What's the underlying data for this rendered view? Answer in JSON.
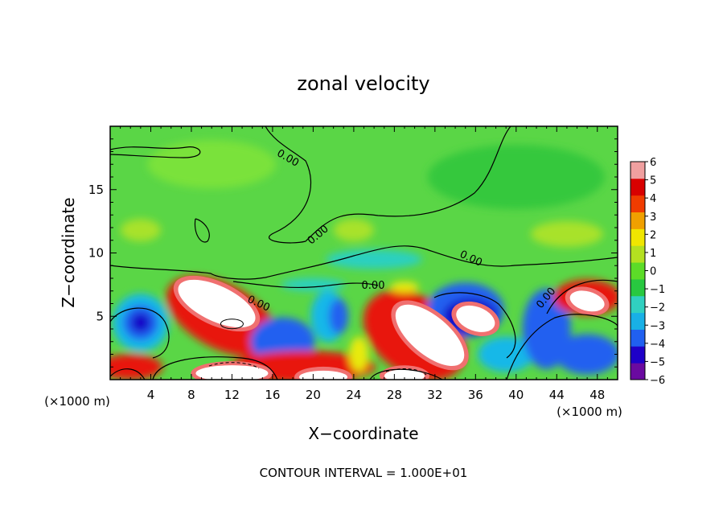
{
  "chart_data": {
    "type": "heatmap",
    "title": "zonal velocity",
    "xlabel": "X−coordinate",
    "ylabel": "Z−coordinate",
    "x_unit_left": "(×1000 m)",
    "x_unit_right": "(×1000 m)",
    "xlim": [
      0,
      50
    ],
    "ylim": [
      0,
      20
    ],
    "x_ticks": [
      4,
      8,
      12,
      16,
      20,
      24,
      28,
      32,
      36,
      40,
      44,
      48
    ],
    "y_ticks": [
      5,
      10,
      15
    ],
    "colorbar": {
      "min": -6,
      "max": 6,
      "tick_values": [
        6,
        5,
        4,
        3,
        2,
        1,
        0,
        -1,
        -2,
        -3,
        -4,
        -5,
        -6
      ],
      "tick_labels": [
        "6",
        "5",
        "4",
        "3",
        "2",
        "1",
        "0",
        "−1",
        "−2",
        "−3",
        "−4",
        "−5",
        "−6"
      ],
      "colors": [
        "#6a0aa0",
        "#1e00c8",
        "#2060f0",
        "#18b0e6",
        "#30d0c0",
        "#28c840",
        "#5cdc28",
        "#b4e020",
        "#f0e600",
        "#f0a000",
        "#f03c00",
        "#d80000",
        "#f0a0a0"
      ]
    },
    "contour_labels": [
      "0.00",
      "0.00",
      "0.00",
      "0.00",
      "0.00",
      "0.00",
      "0.00"
    ],
    "footer": "CONTOUR INTERVAL = 1.000E+01"
  }
}
